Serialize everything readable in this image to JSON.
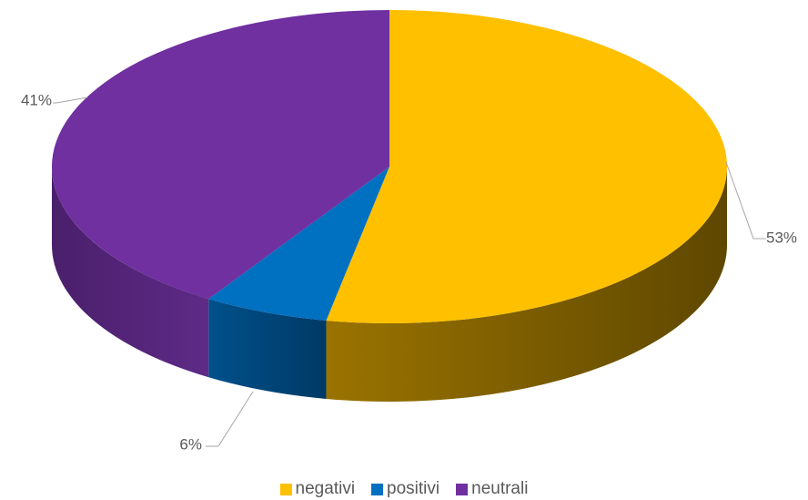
{
  "chart_data": {
    "type": "pie",
    "title": "",
    "categories": [
      "negativi",
      "positivi",
      "neutrali"
    ],
    "values": [
      53,
      6,
      41
    ],
    "data_labels": [
      "53%",
      "6%",
      "41%"
    ],
    "colors": [
      "#FFC000",
      "#0070C0",
      "#7030A0"
    ],
    "legend_position": "bottom",
    "style": "3d"
  }
}
